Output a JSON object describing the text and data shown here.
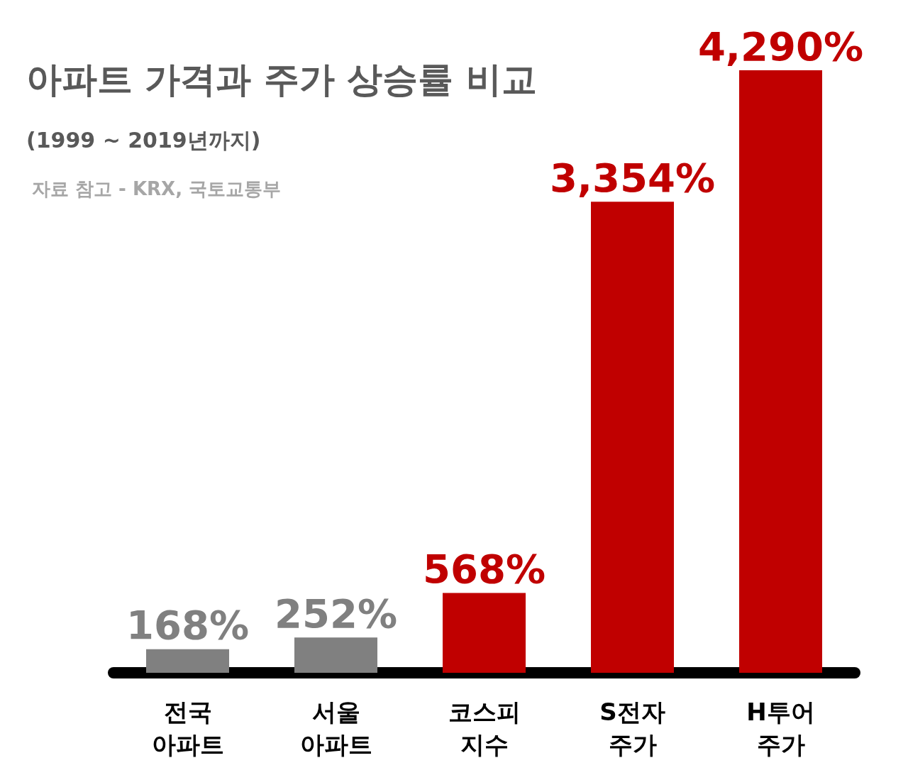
{
  "chart_data": {
    "type": "bar",
    "title": "아파트 가격과 주가 상승률 비교",
    "subtitle": "(1999 ~ 2019년까지)",
    "annotations": [
      "자료 참고 - KRX, 국토교통부"
    ],
    "categories": [
      "전국\n아파트",
      "서울\n아파트",
      "코스피\n지수",
      "S전자\n주가",
      "H투어\n주가"
    ],
    "values": [
      168,
      252,
      568,
      3354,
      4290
    ],
    "colors": [
      "#808080",
      "#808080",
      "#c00000",
      "#c00000",
      "#c00000"
    ],
    "value_labels": [
      "168%",
      "252%",
      "568%",
      "3,354%",
      "4,290%"
    ],
    "ylim": [
      0,
      4290
    ]
  }
}
